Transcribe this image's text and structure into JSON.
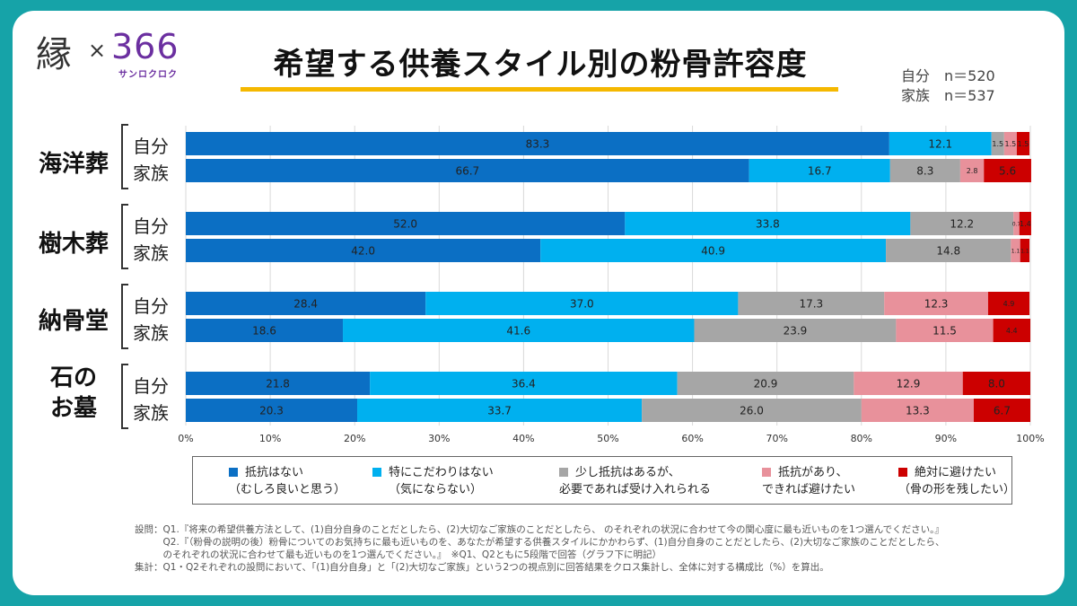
{
  "logo": {
    "en": "縁",
    "x": "×",
    "num": "366",
    "kana": "サンロクロク"
  },
  "title": "希望する供養スタイル別の粉骨許容度",
  "sample": {
    "self": "自分　n＝520",
    "family": "家族　n＝537"
  },
  "categories": [
    {
      "label_lines": [
        "海洋葬"
      ]
    },
    {
      "label_lines": [
        "樹木葬"
      ]
    },
    {
      "label_lines": [
        "納骨堂"
      ]
    },
    {
      "label_lines": [
        "石の",
        "お墓"
      ]
    }
  ],
  "row_labels": {
    "self": "自分",
    "family": "家族"
  },
  "colors": [
    "#0b6fc4",
    "#00b0ef",
    "#a6a6a6",
    "#e8919b",
    "#cc0000"
  ],
  "chart_data": {
    "type": "bar",
    "orientation": "horizontal-stacked-100",
    "categories": [
      "海洋葬 自分",
      "海洋葬 家族",
      "樹木葬 自分",
      "樹木葬 家族",
      "納骨堂 自分",
      "納骨堂 家族",
      "石のお墓 自分",
      "石のお墓 家族"
    ],
    "series": [
      {
        "name": "抵抗はない（むしろ良いと思う）",
        "values": [
          83.3,
          66.7,
          52.0,
          42.0,
          28.4,
          18.6,
          21.8,
          20.3
        ]
      },
      {
        "name": "特にこだわりはない（気にならない）",
        "values": [
          12.1,
          16.7,
          33.8,
          40.9,
          37.0,
          41.6,
          36.4,
          33.7
        ]
      },
      {
        "name": "少し抵抗はあるが、必要であれば受け入れられる",
        "values": [
          1.5,
          8.3,
          12.2,
          14.8,
          17.3,
          23.9,
          20.9,
          26.0
        ]
      },
      {
        "name": "抵抗があり、できれば避けたい",
        "values": [
          1.5,
          2.8,
          0.7,
          1.1,
          12.3,
          11.5,
          12.9,
          13.3
        ]
      },
      {
        "name": "絶対に避けたい（骨の形を残したい）",
        "values": [
          1.5,
          5.6,
          1.4,
          1.1,
          4.9,
          4.4,
          8.0,
          6.7
        ]
      }
    ],
    "xticks": [
      "0%",
      "10%",
      "20%",
      "30%",
      "40%",
      "50%",
      "60%",
      "70%",
      "80%",
      "90%",
      "100%"
    ],
    "xlim": [
      0,
      100
    ]
  },
  "legend": [
    {
      "line1": "抵抗はない",
      "line2": "（むしろ良いと思う）"
    },
    {
      "line1": "特にこだわりはない",
      "line2": "（気にならない）"
    },
    {
      "line1": "少し抵抗はあるが、",
      "line2": "必要であれば受け入れられる"
    },
    {
      "line1": "抵抗があり、",
      "line2": "できれば避けたい"
    },
    {
      "line1": "絶対に避けたい",
      "line2": "（骨の形を残したい）"
    }
  ],
  "notes": [
    "設問：Q1.『将来の希望供養方法として、(1)自分自身のことだとしたら、(2)大切なご家族のことだとしたら、 のそれぞれの状況に合わせて今の関心度に最も近いものを1つ選んでください。』",
    "　　　Q2.『（粉骨の説明の後）粉骨についてのお気持ちに最も近いものを、あなたが希望する供養スタイルにかかわらず、(1)自分自身のことだとしたら、(2)大切なご家族のことだとしたら、",
    "　　　のそれぞれの状況に合わせて最も近いものを1つ選んでください。』　※Q1、Q2ともに5段階で回答（グラフ下に明記）",
    "集計：Q1・Q2それぞれの設問において、「(1)自分自身」と「(2)大切なご家族」という2つの視点別に回答結果をクロス集計し、全体に対する構成比（%）を算出。"
  ]
}
